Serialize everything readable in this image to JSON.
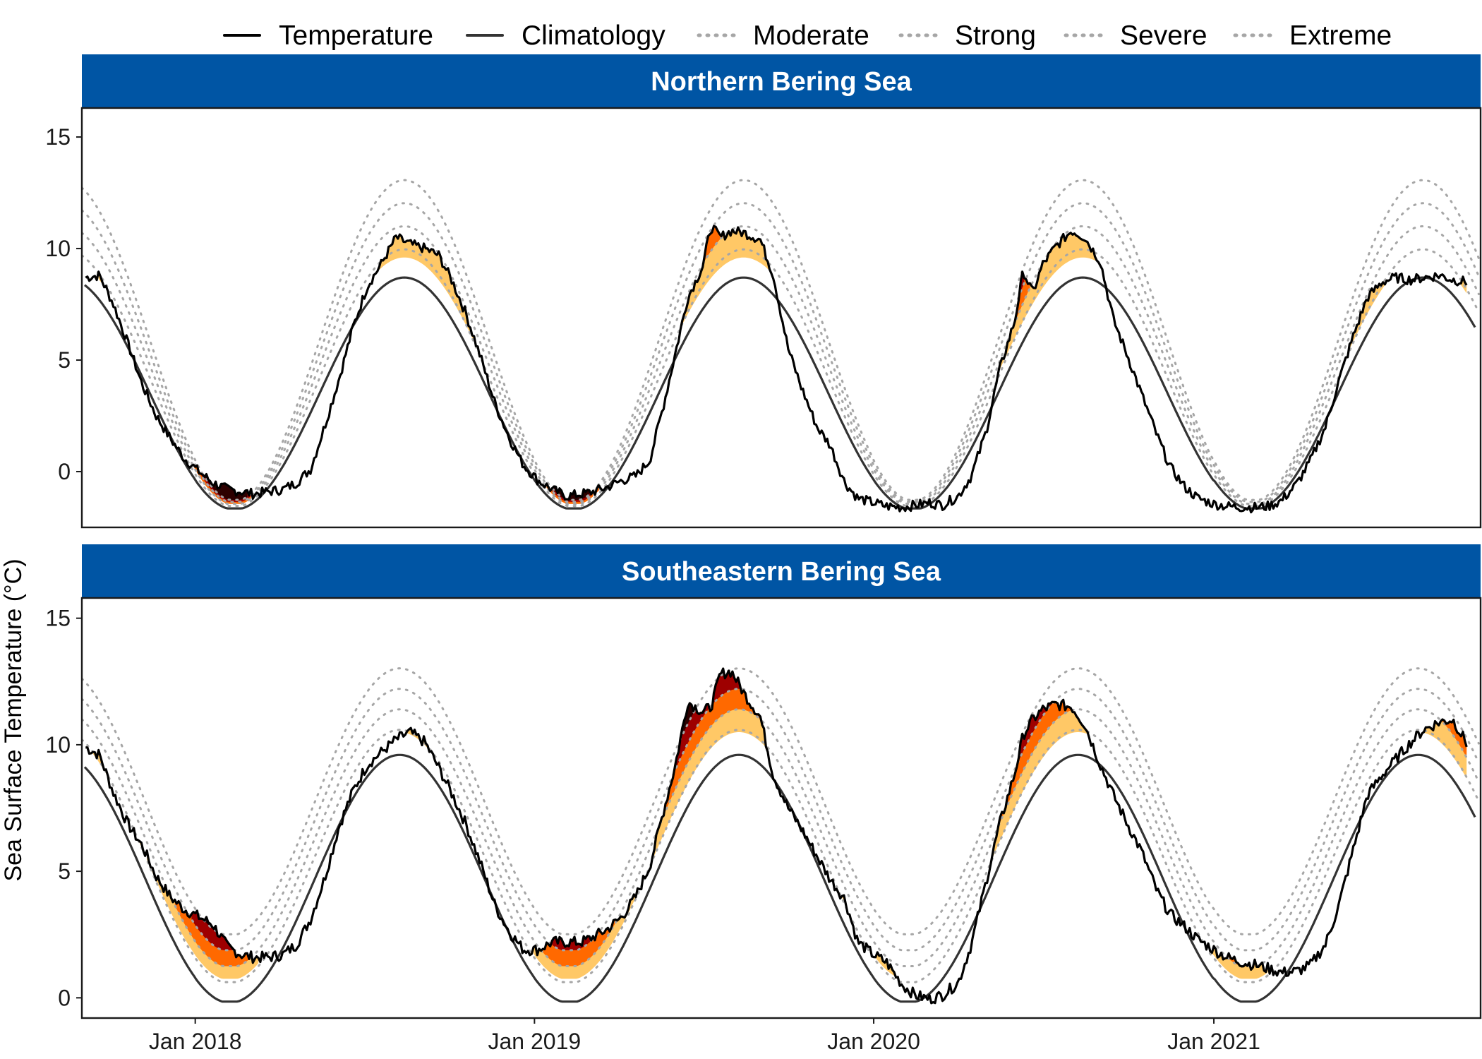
{
  "chart_data": {
    "type": "line",
    "ylabel": "Sea Surface Temperature (°C)",
    "x_tick_labels": [
      "Jan 2018",
      "Jan 2019",
      "Jan 2020",
      "Jan 2021"
    ],
    "x_ticks": [
      "2018-01-01",
      "2019-01-01",
      "2020-01-01",
      "2021-01-01"
    ],
    "y_ticks": [
      0,
      5,
      10,
      15
    ],
    "xlim": [
      "2017-09-01",
      "2021-10-15"
    ],
    "colors": {
      "temperature": "#000000",
      "climatology": "#333333",
      "threshold": "#a6a6a6",
      "moderate_fill": "#FFC866",
      "strong_fill": "#FF6900",
      "severe_fill": "#9E0000",
      "extreme_fill": "#2D0000",
      "strip": "#0055A4"
    },
    "legend": {
      "position": "top",
      "entries": [
        {
          "label": "Temperature",
          "style": "solid"
        },
        {
          "label": "Climatology",
          "style": "solid"
        },
        {
          "label": "Moderate",
          "style": "dotted"
        },
        {
          "label": "Strong",
          "style": "dotted"
        },
        {
          "label": "Severe",
          "style": "dotted"
        },
        {
          "label": "Extreme",
          "style": "dotted"
        }
      ]
    },
    "panels": [
      {
        "title": "Northern Bering Sea",
        "ylim": [
          -2.5,
          16.3
        ],
        "climatology": {
          "mean": 3.5,
          "amp": 5.2,
          "min": -1.65,
          "peak_day": 225,
          "amp_trough": 0.0
        },
        "threshold_spread": {
          "summer": 2.3,
          "winter": 0.2
        },
        "temperature": {
          "dates": [
            "2017-09-05",
            "2017-09-20",
            "2017-10-05",
            "2017-10-20",
            "2017-11-05",
            "2017-11-20",
            "2017-12-05",
            "2017-12-20",
            "2018-01-05",
            "2018-01-20",
            "2018-02-05",
            "2018-02-20",
            "2018-03-05",
            "2018-03-20",
            "2018-04-05",
            "2018-04-20",
            "2018-05-05",
            "2018-05-20",
            "2018-06-05",
            "2018-06-20",
            "2018-07-05",
            "2018-07-20",
            "2018-08-05",
            "2018-08-20",
            "2018-09-05",
            "2018-09-20",
            "2018-10-05",
            "2018-10-20",
            "2018-11-05",
            "2018-11-20",
            "2018-12-05",
            "2018-12-20",
            "2019-01-05",
            "2019-01-20",
            "2019-02-05",
            "2019-02-20",
            "2019-03-05",
            "2019-03-20",
            "2019-04-05",
            "2019-04-20",
            "2019-05-05",
            "2019-05-20",
            "2019-06-01",
            "2019-06-15",
            "2019-07-01",
            "2019-07-10",
            "2019-07-20",
            "2019-08-01",
            "2019-08-15",
            "2019-09-01",
            "2019-09-15",
            "2019-10-01",
            "2019-10-15",
            "2019-11-01",
            "2019-11-15",
            "2019-12-01",
            "2019-12-15",
            "2020-01-01",
            "2020-01-15",
            "2020-02-01",
            "2020-02-15",
            "2020-03-01",
            "2020-03-15",
            "2020-04-01",
            "2020-04-15",
            "2020-05-01",
            "2020-05-15",
            "2020-06-01",
            "2020-06-10",
            "2020-06-20",
            "2020-07-01",
            "2020-07-15",
            "2020-08-01",
            "2020-08-15",
            "2020-09-01",
            "2020-09-15",
            "2020-10-01",
            "2020-10-15",
            "2020-11-01",
            "2020-11-15",
            "2020-12-01",
            "2020-12-15",
            "2021-01-01",
            "2021-01-15",
            "2021-02-01",
            "2021-02-15",
            "2021-03-01",
            "2021-03-15",
            "2021-04-01",
            "2021-04-15",
            "2021-05-01",
            "2021-05-15",
            "2021-06-01",
            "2021-06-15",
            "2021-07-01",
            "2021-07-15",
            "2021-08-01",
            "2021-08-15",
            "2021-09-01",
            "2021-09-15",
            "2021-10-01"
          ],
          "values": [
            8.7,
            8.8,
            7.5,
            5.8,
            3.9,
            2.5,
            1.5,
            0.6,
            0.0,
            -0.5,
            -0.8,
            -0.9,
            -1.0,
            -0.9,
            -0.8,
            -0.5,
            0.1,
            2.0,
            4.2,
            6.5,
            8.3,
            9.3,
            10.5,
            10.2,
            10.0,
            9.7,
            8.5,
            7.0,
            5.0,
            3.0,
            1.5,
            0.3,
            -0.4,
            -0.8,
            -1.1,
            -1.0,
            -0.9,
            -0.7,
            -0.4,
            -0.2,
            0.5,
            3.0,
            5.2,
            7.8,
            9.2,
            11.0,
            10.5,
            10.8,
            10.7,
            10.4,
            8.8,
            5.5,
            3.8,
            2.0,
            1.2,
            -0.5,
            -1.2,
            -1.4,
            -1.55,
            -1.6,
            -1.5,
            -1.4,
            -1.5,
            -1.1,
            -0.2,
            1.8,
            4.5,
            6.8,
            9.0,
            8.0,
            9.3,
            10.1,
            10.8,
            10.5,
            9.4,
            6.8,
            5.1,
            3.5,
            1.6,
            0.2,
            -0.7,
            -1.2,
            -1.45,
            -1.55,
            -1.6,
            -1.6,
            -1.55,
            -1.3,
            -0.5,
            0.5,
            2.0,
            4.0,
            6.2,
            7.8,
            8.5,
            8.7,
            8.6,
            8.7,
            8.8,
            8.6,
            8.5
          ]
        }
      },
      {
        "title": "Southeastern Bering Sea",
        "ylim": [
          -0.8,
          15.8
        ],
        "climatology": {
          "mean": 4.7,
          "amp": 4.9,
          "min": -0.15,
          "peak_day": 220,
          "amp_trough": 0.0
        },
        "threshold_spread": {
          "summer": 1.8,
          "winter": 1.4
        },
        "temperature": {
          "dates": [
            "2017-09-05",
            "2017-09-20",
            "2017-10-05",
            "2017-10-20",
            "2017-11-05",
            "2017-11-20",
            "2017-12-05",
            "2017-12-20",
            "2018-01-05",
            "2018-01-20",
            "2018-02-05",
            "2018-02-20",
            "2018-03-05",
            "2018-03-20",
            "2018-04-05",
            "2018-04-20",
            "2018-05-05",
            "2018-05-20",
            "2018-06-05",
            "2018-06-20",
            "2018-07-05",
            "2018-07-20",
            "2018-08-05",
            "2018-08-20",
            "2018-09-05",
            "2018-09-20",
            "2018-10-05",
            "2018-10-20",
            "2018-11-05",
            "2018-11-20",
            "2018-12-05",
            "2018-12-20",
            "2019-01-05",
            "2019-01-20",
            "2019-02-05",
            "2019-02-20",
            "2019-03-05",
            "2019-03-20",
            "2019-04-05",
            "2019-04-20",
            "2019-05-05",
            "2019-05-20",
            "2019-06-01",
            "2019-06-15",
            "2019-07-01",
            "2019-07-10",
            "2019-07-20",
            "2019-08-01",
            "2019-08-15",
            "2019-09-01",
            "2019-09-15",
            "2019-10-01",
            "2019-10-15",
            "2019-11-01",
            "2019-11-15",
            "2019-12-01",
            "2019-12-15",
            "2020-01-01",
            "2020-01-15",
            "2020-02-01",
            "2020-02-15",
            "2020-03-01",
            "2020-03-15",
            "2020-04-01",
            "2020-04-15",
            "2020-05-01",
            "2020-05-15",
            "2020-06-01",
            "2020-06-10",
            "2020-06-20",
            "2020-07-01",
            "2020-07-15",
            "2020-08-01",
            "2020-08-15",
            "2020-09-01",
            "2020-09-15",
            "2020-10-01",
            "2020-10-15",
            "2020-11-01",
            "2020-11-15",
            "2020-12-01",
            "2020-12-15",
            "2021-01-01",
            "2021-01-15",
            "2021-02-01",
            "2021-02-15",
            "2021-03-01",
            "2021-03-15",
            "2021-04-01",
            "2021-04-15",
            "2021-05-01",
            "2021-05-15",
            "2021-06-01",
            "2021-06-15",
            "2021-07-01",
            "2021-07-15",
            "2021-08-01",
            "2021-08-15",
            "2021-09-01",
            "2021-09-15",
            "2021-10-01"
          ],
          "values": [
            9.9,
            9.6,
            8.1,
            6.9,
            6.0,
            4.8,
            4.0,
            3.5,
            3.2,
            2.9,
            2.0,
            1.7,
            1.6,
            1.6,
            1.7,
            2.1,
            3.1,
            4.7,
            6.8,
            8.2,
            9.2,
            9.7,
            10.2,
            10.5,
            10.1,
            9.1,
            8.0,
            6.8,
            5.2,
            3.6,
            2.6,
            1.9,
            1.9,
            2.2,
            2.2,
            2.2,
            2.4,
            2.7,
            3.2,
            4.0,
            5.2,
            7.4,
            9.1,
            11.7,
            11.3,
            11.5,
            12.8,
            12.9,
            12.0,
            11.1,
            8.8,
            7.5,
            6.7,
            5.6,
            4.7,
            3.9,
            2.2,
            1.7,
            1.4,
            0.5,
            0.1,
            -0.05,
            0.1,
            0.6,
            2.1,
            4.6,
            6.8,
            8.9,
            10.4,
            11.0,
            11.4,
            11.6,
            11.5,
            10.8,
            9.2,
            8.0,
            6.8,
            5.8,
            4.2,
            3.3,
            2.8,
            2.3,
            1.9,
            1.6,
            1.4,
            1.3,
            1.15,
            1.0,
            1.05,
            1.3,
            2.1,
            3.6,
            6.0,
            8.0,
            8.8,
            9.4,
            10.1,
            10.6,
            10.9,
            11.0,
            10.0
          ]
        }
      }
    ]
  }
}
